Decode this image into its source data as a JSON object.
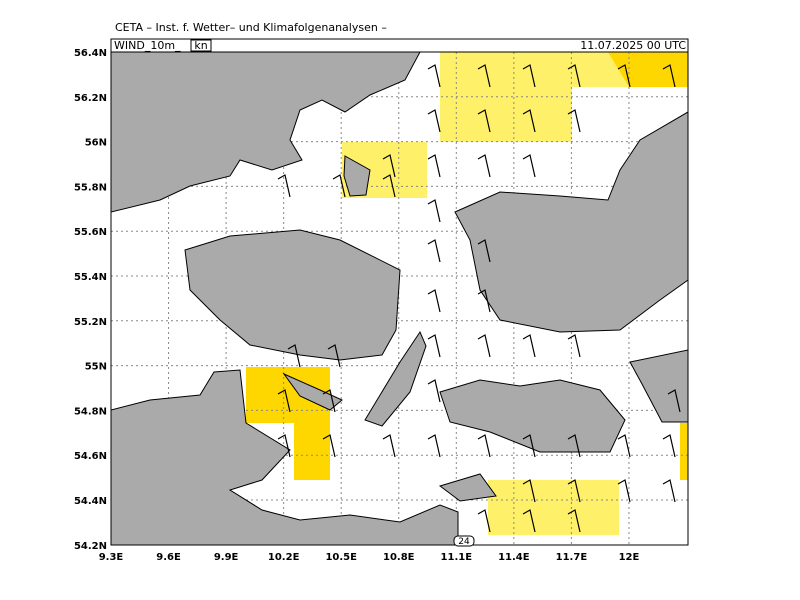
{
  "header": {
    "title": "CETA – Inst. f. Wetter– und Klimafolgenanalysen –",
    "field": "WIND_10m_",
    "unit": "kn",
    "datetime": "11.07.2025 00 UTC"
  },
  "map": {
    "lat_labels": [
      "56.4N",
      "56.2N",
      "56N",
      "55.8N",
      "55.6N",
      "55.4N",
      "55.2N",
      "55N",
      "54.8N",
      "54.6N",
      "54.4N",
      "54.2N"
    ],
    "lon_labels": [
      "9.3E",
      "9.6E",
      "9.9E",
      "10.2E",
      "10.5E",
      "10.8E",
      "11.1E",
      "11.4E",
      "11.7E",
      "12E"
    ],
    "marker": "24"
  }
}
